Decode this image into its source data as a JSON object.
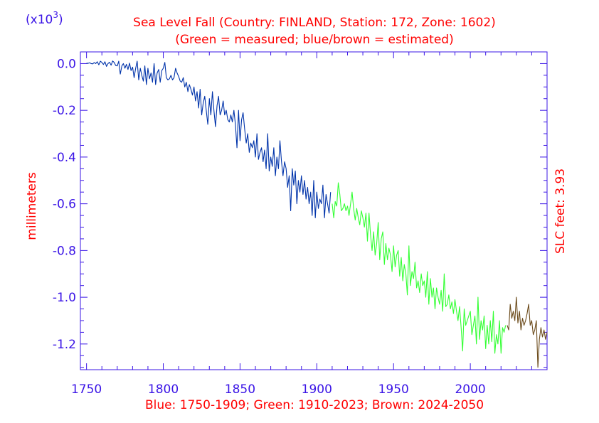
{
  "chart_data": {
    "type": "line",
    "title": "Sea Level Fall (Country: FINLAND, Station: 172, Zone: 1602)",
    "subtitle": "(Green = measured; blue/brown = estimated)",
    "multiplier_base": "(x10",
    "multiplier_exp": "3",
    "multiplier_close": ")",
    "ylabel": "millimeters",
    "right_label": "SLC feet: 3.93",
    "xlabel": "Blue: 1750-1909; Green: 1910-2023; Brown: 2024-2050",
    "xlim": [
      1746,
      2050
    ],
    "ylim": [
      -1.31,
      0.05
    ],
    "x_ticks": [
      1750,
      1800,
      1850,
      1900,
      1950,
      2000
    ],
    "x_tick_labels": [
      "1750",
      "1800",
      "1850",
      "1900",
      "1950",
      "2000"
    ],
    "y_ticks": [
      0.0,
      -0.2,
      -0.4,
      -0.6,
      -0.8,
      -1.0,
      -1.2
    ],
    "y_tick_labels": [
      "0.0",
      "-0.2",
      "-0.4",
      "-0.6",
      "-0.8",
      "-1.0",
      "-1.2"
    ],
    "colors": {
      "axis": "#3a14e6",
      "text_red": "#ff0000",
      "blue": "#0033aa",
      "green": "#33ff33",
      "brown": "#6b4a1a"
    },
    "series": [
      {
        "name": "Blue: 1750-1909",
        "color": "#0033aa",
        "points": [
          [
            1750,
            0.002
          ],
          [
            1751,
            0.001
          ],
          [
            1752,
            0.003
          ],
          [
            1753,
            0.0
          ],
          [
            1754,
            -0.001
          ],
          [
            1755,
            0.004
          ],
          [
            1756,
            0.0
          ],
          [
            1757,
            0.008
          ],
          [
            1758,
            -0.005
          ],
          [
            1759,
            0.01
          ],
          [
            1760,
            0.005
          ],
          [
            1761,
            -0.004
          ],
          [
            1762,
            0.008
          ],
          [
            1763,
            -0.012
          ],
          [
            1764,
            0.0
          ],
          [
            1765,
            0.006
          ],
          [
            1766,
            -0.007
          ],
          [
            1767,
            0.011
          ],
          [
            1768,
            0.005
          ],
          [
            1769,
            -0.008
          ],
          [
            1770,
            -0.01
          ],
          [
            1771,
            0.01
          ],
          [
            1772,
            -0.045
          ],
          [
            1773,
            -0.01
          ],
          [
            1774,
            0.0
          ],
          [
            1775,
            -0.02
          ],
          [
            1776,
            -0.003
          ],
          [
            1777,
            -0.025
          ],
          [
            1778,
            0.002
          ],
          [
            1779,
            -0.03
          ],
          [
            1780,
            -0.015
          ],
          [
            1781,
            -0.06
          ],
          [
            1782,
            -0.02
          ],
          [
            1783,
            0.01
          ],
          [
            1784,
            -0.07
          ],
          [
            1785,
            -0.02
          ],
          [
            1786,
            -0.05
          ],
          [
            1787,
            -0.075
          ],
          [
            1788,
            -0.01
          ],
          [
            1789,
            -0.09
          ],
          [
            1790,
            -0.02
          ],
          [
            1791,
            -0.065
          ],
          [
            1792,
            -0.04
          ],
          [
            1793,
            -0.08
          ],
          [
            1794,
            0.0
          ],
          [
            1795,
            -0.09
          ],
          [
            1796,
            -0.04
          ],
          [
            1797,
            -0.025
          ],
          [
            1798,
            -0.08
          ],
          [
            1799,
            -0.03
          ],
          [
            1800,
            -0.02
          ],
          [
            1801,
            0.005
          ],
          [
            1802,
            -0.06
          ],
          [
            1803,
            -0.07
          ],
          [
            1804,
            -0.065
          ],
          [
            1805,
            -0.05
          ],
          [
            1806,
            -0.07
          ],
          [
            1807,
            -0.06
          ],
          [
            1808,
            -0.02
          ],
          [
            1809,
            -0.04
          ],
          [
            1810,
            -0.055
          ],
          [
            1811,
            -0.075
          ],
          [
            1812,
            -0.08
          ],
          [
            1813,
            -0.06
          ],
          [
            1814,
            -0.1
          ],
          [
            1815,
            -0.08
          ],
          [
            1816,
            -0.12
          ],
          [
            1817,
            -0.09
          ],
          [
            1818,
            -0.11
          ],
          [
            1819,
            -0.135
          ],
          [
            1820,
            -0.1
          ],
          [
            1821,
            -0.16
          ],
          [
            1822,
            -0.12
          ],
          [
            1823,
            -0.19
          ],
          [
            1824,
            -0.11
          ],
          [
            1825,
            -0.22
          ],
          [
            1826,
            -0.17
          ],
          [
            1827,
            -0.14
          ],
          [
            1828,
            -0.2
          ],
          [
            1829,
            -0.26
          ],
          [
            1830,
            -0.15
          ],
          [
            1831,
            -0.22
          ],
          [
            1832,
            -0.12
          ],
          [
            1833,
            -0.2
          ],
          [
            1834,
            -0.27
          ],
          [
            1835,
            -0.18
          ],
          [
            1836,
            -0.14
          ],
          [
            1837,
            -0.22
          ],
          [
            1838,
            -0.2
          ],
          [
            1839,
            -0.16
          ],
          [
            1840,
            -0.22
          ],
          [
            1841,
            -0.2
          ],
          [
            1842,
            -0.24
          ],
          [
            1843,
            -0.25
          ],
          [
            1844,
            -0.22
          ],
          [
            1845,
            -0.25
          ],
          [
            1846,
            -0.2
          ],
          [
            1847,
            -0.26
          ],
          [
            1848,
            -0.36
          ],
          [
            1849,
            -0.2
          ],
          [
            1850,
            -0.33
          ],
          [
            1851,
            -0.24
          ],
          [
            1852,
            -0.21
          ],
          [
            1853,
            -0.28
          ],
          [
            1854,
            -0.34
          ],
          [
            1855,
            -0.3
          ],
          [
            1856,
            -0.38
          ],
          [
            1857,
            -0.34
          ],
          [
            1858,
            -0.36
          ],
          [
            1859,
            -0.33
          ],
          [
            1860,
            -0.4
          ],
          [
            1861,
            -0.3
          ],
          [
            1862,
            -0.41
          ],
          [
            1863,
            -0.38
          ],
          [
            1864,
            -0.36
          ],
          [
            1865,
            -0.42
          ],
          [
            1866,
            -0.37
          ],
          [
            1867,
            -0.45
          ],
          [
            1868,
            -0.3
          ],
          [
            1869,
            -0.46
          ],
          [
            1870,
            -0.4
          ],
          [
            1871,
            -0.44
          ],
          [
            1872,
            -0.36
          ],
          [
            1873,
            -0.48
          ],
          [
            1874,
            -0.4
          ],
          [
            1875,
            -0.45
          ],
          [
            1876,
            -0.33
          ],
          [
            1877,
            -0.42
          ],
          [
            1878,
            -0.48
          ],
          [
            1879,
            -0.42
          ],
          [
            1880,
            -0.45
          ],
          [
            1881,
            -0.53
          ],
          [
            1882,
            -0.48
          ],
          [
            1883,
            -0.63
          ],
          [
            1884,
            -0.45
          ],
          [
            1885,
            -0.52
          ],
          [
            1886,
            -0.46
          ],
          [
            1887,
            -0.6
          ],
          [
            1888,
            -0.5
          ],
          [
            1889,
            -0.55
          ],
          [
            1890,
            -0.48
          ],
          [
            1891,
            -0.56
          ],
          [
            1892,
            -0.5
          ],
          [
            1893,
            -0.58
          ],
          [
            1894,
            -0.53
          ],
          [
            1895,
            -0.6
          ],
          [
            1896,
            -0.55
          ],
          [
            1897,
            -0.65
          ],
          [
            1898,
            -0.5
          ],
          [
            1899,
            -0.66
          ],
          [
            1900,
            -0.55
          ],
          [
            1901,
            -0.62
          ],
          [
            1902,
            -0.58
          ],
          [
            1903,
            -0.6
          ],
          [
            1904,
            -0.52
          ],
          [
            1905,
            -0.66
          ],
          [
            1906,
            -0.56
          ],
          [
            1907,
            -0.6
          ],
          [
            1908,
            -0.64
          ],
          [
            1909,
            -0.55
          ]
        ]
      },
      {
        "name": "Green: 1910-2023",
        "color": "#33ff33",
        "points": [
          [
            1910,
            -0.6
          ],
          [
            1911,
            -0.66
          ],
          [
            1912,
            -0.59
          ],
          [
            1913,
            -0.61
          ],
          [
            1914,
            -0.51
          ],
          [
            1915,
            -0.56
          ],
          [
            1916,
            -0.63
          ],
          [
            1917,
            -0.62
          ],
          [
            1918,
            -0.6
          ],
          [
            1919,
            -0.63
          ],
          [
            1920,
            -0.61
          ],
          [
            1921,
            -0.65
          ],
          [
            1922,
            -0.6
          ],
          [
            1923,
            -0.55
          ],
          [
            1924,
            -0.62
          ],
          [
            1925,
            -0.67
          ],
          [
            1926,
            -0.62
          ],
          [
            1927,
            -0.66
          ],
          [
            1928,
            -0.69
          ],
          [
            1929,
            -0.63
          ],
          [
            1930,
            -0.66
          ],
          [
            1931,
            -0.7
          ],
          [
            1932,
            -0.64
          ],
          [
            1933,
            -0.76
          ],
          [
            1934,
            -0.64
          ],
          [
            1935,
            -0.73
          ],
          [
            1936,
            -0.8
          ],
          [
            1937,
            -0.72
          ],
          [
            1938,
            -0.82
          ],
          [
            1939,
            -0.77
          ],
          [
            1940,
            -0.68
          ],
          [
            1941,
            -0.84
          ],
          [
            1942,
            -0.75
          ],
          [
            1943,
            -0.72
          ],
          [
            1944,
            -0.86
          ],
          [
            1945,
            -0.77
          ],
          [
            1946,
            -0.84
          ],
          [
            1947,
            -0.79
          ],
          [
            1948,
            -0.82
          ],
          [
            1949,
            -0.89
          ],
          [
            1950,
            -0.78
          ],
          [
            1951,
            -0.87
          ],
          [
            1952,
            -0.82
          ],
          [
            1953,
            -0.8
          ],
          [
            1954,
            -0.91
          ],
          [
            1955,
            -0.83
          ],
          [
            1956,
            -0.93
          ],
          [
            1957,
            -0.86
          ],
          [
            1958,
            -0.9
          ],
          [
            1959,
            -0.99
          ],
          [
            1960,
            -0.78
          ],
          [
            1961,
            -0.95
          ],
          [
            1962,
            -0.89
          ],
          [
            1963,
            -0.92
          ],
          [
            1964,
            -0.85
          ],
          [
            1965,
            -0.96
          ],
          [
            1966,
            -0.93
          ],
          [
            1967,
            -0.98
          ],
          [
            1968,
            -0.9
          ],
          [
            1969,
            -0.95
          ],
          [
            1970,
            -0.93
          ],
          [
            1971,
            -1.0
          ],
          [
            1972,
            -0.89
          ],
          [
            1973,
            -1.03
          ],
          [
            1974,
            -0.92
          ],
          [
            1975,
            -1.0
          ],
          [
            1976,
            -0.96
          ],
          [
            1977,
            -1.05
          ],
          [
            1978,
            -0.96
          ],
          [
            1979,
            -1.0
          ],
          [
            1980,
            -1.03
          ],
          [
            1981,
            -0.97
          ],
          [
            1982,
            -1.06
          ],
          [
            1983,
            -0.9
          ],
          [
            1984,
            -1.04
          ],
          [
            1985,
            -1.03
          ],
          [
            1986,
            -0.99
          ],
          [
            1987,
            -1.05
          ],
          [
            1988,
            -1.02
          ],
          [
            1989,
            -1.07
          ],
          [
            1990,
            -1.01
          ],
          [
            1991,
            -1.06
          ],
          [
            1992,
            -1.1
          ],
          [
            1993,
            -1.04
          ],
          [
            1994,
            -1.13
          ],
          [
            1995,
            -1.23
          ],
          [
            1996,
            -1.05
          ],
          [
            1997,
            -1.12
          ],
          [
            1998,
            -1.1
          ],
          [
            1999,
            -1.08
          ],
          [
            2000,
            -1.06
          ],
          [
            2001,
            -1.16
          ],
          [
            2002,
            -1.12
          ],
          [
            2003,
            -1.08
          ],
          [
            2004,
            -1.2
          ],
          [
            2005,
            -1.0
          ],
          [
            2006,
            -1.18
          ],
          [
            2007,
            -1.1
          ],
          [
            2008,
            -1.14
          ],
          [
            2009,
            -1.08
          ],
          [
            2010,
            -1.22
          ],
          [
            2011,
            -1.12
          ],
          [
            2012,
            -1.2
          ],
          [
            2013,
            -1.1
          ],
          [
            2014,
            -1.19
          ],
          [
            2015,
            -1.06
          ],
          [
            2016,
            -1.24
          ],
          [
            2017,
            -1.16
          ],
          [
            2018,
            -1.2
          ],
          [
            2019,
            -1.1
          ],
          [
            2020,
            -1.24
          ],
          [
            2021,
            -1.13
          ],
          [
            2022,
            -1.15
          ],
          [
            2023,
            -1.12
          ]
        ]
      },
      {
        "name": "Brown: 2024-2050",
        "color": "#6b4a1a",
        "points": [
          [
            2024,
            -1.12
          ],
          [
            2025,
            -1.14
          ],
          [
            2026,
            -1.03
          ],
          [
            2027,
            -1.09
          ],
          [
            2028,
            -1.06
          ],
          [
            2029,
            -1.1
          ],
          [
            2030,
            -1.0
          ],
          [
            2031,
            -1.11
          ],
          [
            2032,
            -1.06
          ],
          [
            2033,
            -1.14
          ],
          [
            2034,
            -1.09
          ],
          [
            2035,
            -1.12
          ],
          [
            2036,
            -1.1
          ],
          [
            2037,
            -1.07
          ],
          [
            2038,
            -1.03
          ],
          [
            2039,
            -1.12
          ],
          [
            2040,
            -1.1
          ],
          [
            2041,
            -1.16
          ],
          [
            2042,
            -1.14
          ],
          [
            2043,
            -1.1
          ],
          [
            2044,
            -1.3
          ],
          [
            2045,
            -1.18
          ],
          [
            2046,
            -1.13
          ],
          [
            2047,
            -1.17
          ],
          [
            2048,
            -1.14
          ],
          [
            2049,
            -1.18
          ],
          [
            2050,
            -1.15
          ]
        ]
      }
    ]
  }
}
